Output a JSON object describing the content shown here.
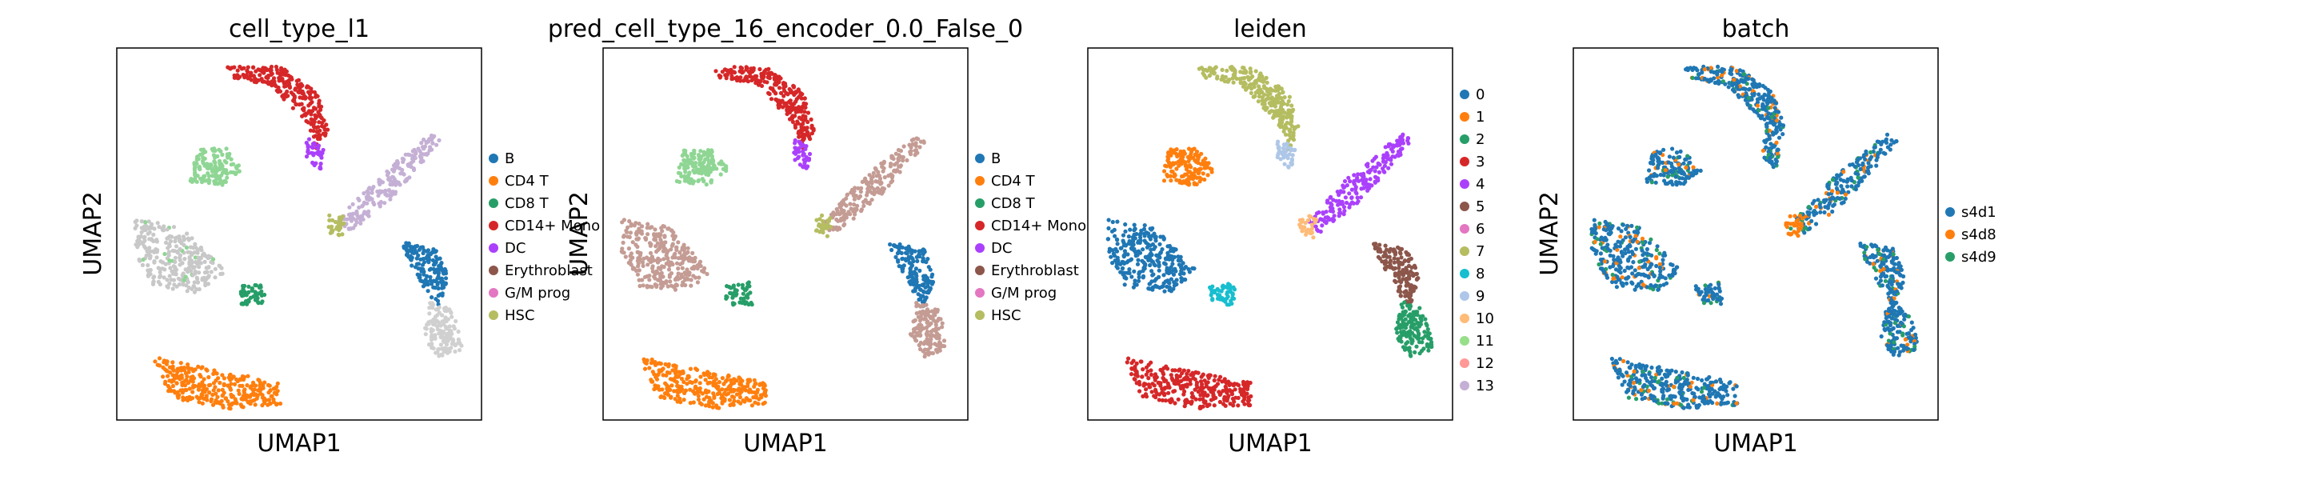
{
  "chart_data": [
    {
      "type": "scatter",
      "title": "cell_type_l1",
      "xlabel": "UMAP1",
      "ylabel": "UMAP2",
      "legend": {
        "placement": "right",
        "entries": [
          {
            "name": "B",
            "color": "#1f77b4"
          },
          {
            "name": "CD4 T",
            "color": "#ff7f0e"
          },
          {
            "name": "CD8 T",
            "color": "#279e68"
          },
          {
            "name": "CD14+ Mono",
            "color": "#d62728"
          },
          {
            "name": "DC",
            "color": "#aa40fc"
          },
          {
            "name": "Erythroblast",
            "color": "#8c564b"
          },
          {
            "name": "G/M prog",
            "color": "#e377c2"
          },
          {
            "name": "HSC",
            "color": "#b5bd61"
          }
        ]
      },
      "clusters": [
        {
          "color": "#d62728",
          "region": "top-center arc"
        },
        {
          "color": "#aa40fc",
          "region": "below top arc"
        },
        {
          "color": "#bcbcbc",
          "region": "left-middle blob"
        },
        {
          "color": "#8fd694",
          "region": "upper-left blob"
        },
        {
          "color": "#279e68",
          "region": "center small blob"
        },
        {
          "color": "#bcbcbc",
          "region": "right diagonal streak"
        },
        {
          "color": "#c5b0d5",
          "region": "right diagonal streak"
        },
        {
          "color": "#b5bd61",
          "region": "right diagonal end"
        },
        {
          "color": "#1f77b4",
          "region": "right lower"
        },
        {
          "color": "#bcbcbc",
          "region": "right bottom arm"
        },
        {
          "color": "#ff7f0e",
          "region": "bottom"
        }
      ]
    },
    {
      "type": "scatter",
      "title": "pred_cell_type_16_encoder_0.0_False_0",
      "xlabel": "UMAP1",
      "ylabel": "UMAP2",
      "legend": {
        "placement": "right",
        "entries": [
          {
            "name": "B",
            "color": "#1f77b4"
          },
          {
            "name": "CD4 T",
            "color": "#ff7f0e"
          },
          {
            "name": "CD8 T",
            "color": "#279e68"
          },
          {
            "name": "CD14+ Mono",
            "color": "#d62728"
          },
          {
            "name": "DC",
            "color": "#aa40fc"
          },
          {
            "name": "Erythroblast",
            "color": "#8c564b"
          },
          {
            "name": "G/M prog",
            "color": "#e377c2"
          },
          {
            "name": "HSC",
            "color": "#b5bd61"
          }
        ]
      }
    },
    {
      "type": "scatter",
      "title": "leiden",
      "xlabel": "UMAP1",
      "ylabel": "",
      "legend": {
        "placement": "right",
        "entries": [
          {
            "name": "0",
            "color": "#1f77b4"
          },
          {
            "name": "1",
            "color": "#ff7f0e"
          },
          {
            "name": "2",
            "color": "#279e68"
          },
          {
            "name": "3",
            "color": "#d62728"
          },
          {
            "name": "4",
            "color": "#aa40fc"
          },
          {
            "name": "5",
            "color": "#8c564b"
          },
          {
            "name": "6",
            "color": "#e377c2"
          },
          {
            "name": "7",
            "color": "#b5bd61"
          },
          {
            "name": "8",
            "color": "#17becf"
          },
          {
            "name": "9",
            "color": "#aec7e8"
          },
          {
            "name": "10",
            "color": "#ffbb78"
          },
          {
            "name": "11",
            "color": "#98df8a"
          },
          {
            "name": "12",
            "color": "#ff9896"
          },
          {
            "name": "13",
            "color": "#c5b0d5"
          }
        ]
      }
    },
    {
      "type": "scatter",
      "title": "batch",
      "xlabel": "UMAP1",
      "ylabel": "UMAP2",
      "legend": {
        "placement": "right",
        "entries": [
          {
            "name": "s4d1",
            "color": "#1f77b4"
          },
          {
            "name": "s4d8",
            "color": "#ff7f0e"
          },
          {
            "name": "s4d9",
            "color": "#279e68"
          }
        ]
      }
    }
  ]
}
